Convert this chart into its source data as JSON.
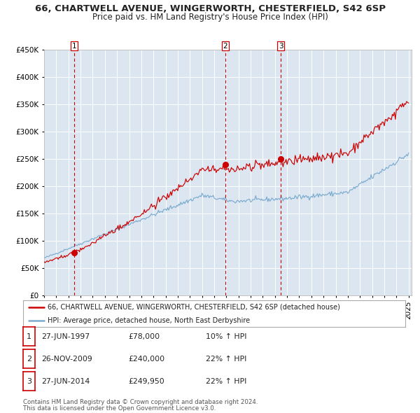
{
  "title": "66, CHARTWELL AVENUE, WINGERWORTH, CHESTERFIELD, S42 6SP",
  "subtitle": "Price paid vs. HM Land Registry's House Price Index (HPI)",
  "sale_dates": [
    "1997-06-27",
    "2009-11-26",
    "2014-06-27"
  ],
  "sale_prices": [
    78000,
    240000,
    249950
  ],
  "sale_labels": [
    "1",
    "2",
    "3"
  ],
  "legend_line1": "66, CHARTWELL AVENUE, WINGERWORTH, CHESTERFIELD, S42 6SP (detached house)",
  "legend_line2": "HPI: Average price, detached house, North East Derbyshire",
  "table_rows": [
    [
      "1",
      "27-JUN-1997",
      "£78,000",
      "10% ↑ HPI"
    ],
    [
      "2",
      "26-NOV-2009",
      "£240,000",
      "22% ↑ HPI"
    ],
    [
      "3",
      "27-JUN-2014",
      "£249,950",
      "22% ↑ HPI"
    ]
  ],
  "footnote1": "Contains HM Land Registry data © Crown copyright and database right 2024.",
  "footnote2": "This data is licensed under the Open Government Licence v3.0.",
  "red_line_color": "#cc0000",
  "blue_line_color": "#7aabcf",
  "background_color": "#dce6f1",
  "plot_bg_color": "#dce6f1",
  "grid_color": "#ffffff",
  "vline_color": "#cc0000",
  "marker_color": "#cc0000",
  "ylim": [
    0,
    450000
  ],
  "yticks": [
    0,
    50000,
    100000,
    150000,
    200000,
    250000,
    300000,
    350000,
    400000,
    450000
  ],
  "title_fontsize": 9.5,
  "subtitle_fontsize": 8.5,
  "axis_fontsize": 7.5
}
